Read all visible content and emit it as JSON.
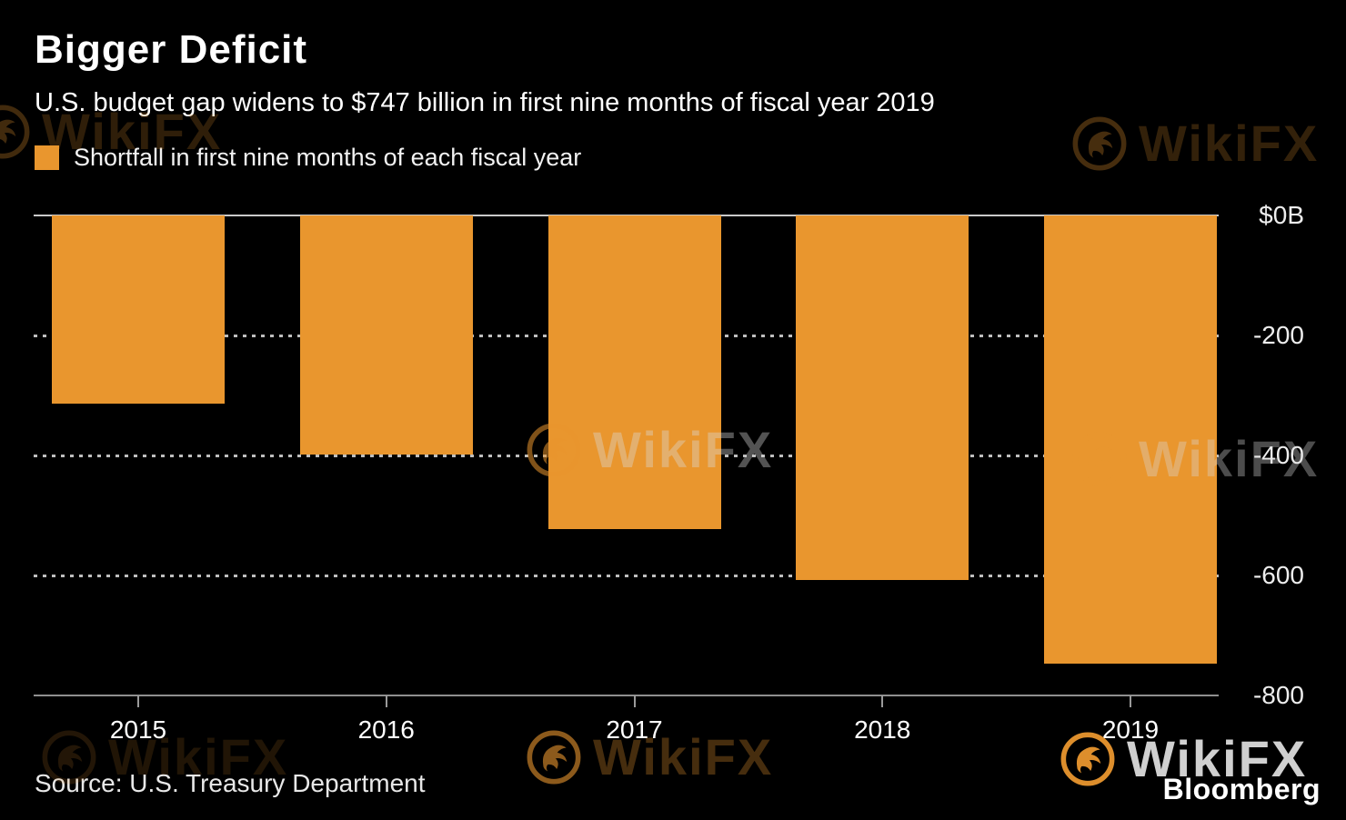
{
  "header": {
    "title": "Bigger Deficit",
    "subtitle": "U.S. budget gap widens to $747 billion in first nine months of fiscal year 2019"
  },
  "legend": {
    "label": "Shortfall in first nine months of each fiscal year",
    "swatch_color": "#E9962E"
  },
  "chart_data": {
    "type": "bar",
    "title": "Bigger Deficit",
    "categories": [
      "2015",
      "2016",
      "2017",
      "2018",
      "2019"
    ],
    "values": [
      -313,
      -399,
      -523,
      -607,
      -747
    ],
    "xlabel": "",
    "ylabel": "",
    "ylim": [
      -800,
      0
    ],
    "y_ticks": [
      "$0B",
      "-200",
      "-400",
      "-600",
      "-800"
    ],
    "y_tick_values": [
      0,
      -200,
      -400,
      -600,
      -800
    ],
    "bar_color": "#E9962E",
    "grid": "horizontal dotted gridlines at -200, -400, -600; solid baseline at 0 and -800",
    "legend_position": "top-left",
    "background_color": "#000000"
  },
  "footer": {
    "source": "Source: U.S. Treasury Department",
    "brand": "Bloomberg"
  },
  "watermark": {
    "text": "WikiFX",
    "color": "#E9962E"
  }
}
